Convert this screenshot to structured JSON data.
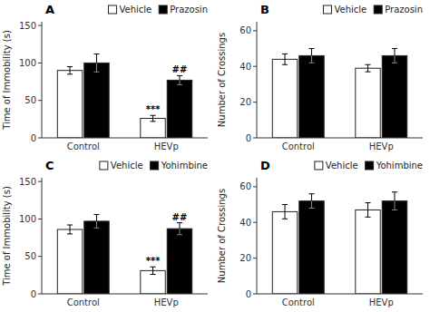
{
  "chart_data": [
    {
      "type": "bar",
      "title": "A",
      "ylabel": "Time of Immobility (s)",
      "categories": [
        "Control",
        "HEVp"
      ],
      "series": [
        {
          "name": "Vehicle",
          "color": "white",
          "values": [
            90,
            26
          ],
          "errors": [
            5,
            4
          ]
        },
        {
          "name": "Prazosin",
          "color": "black",
          "values": [
            100,
            77
          ],
          "errors": [
            12,
            6
          ]
        }
      ],
      "ylim": [
        0,
        155
      ],
      "yticks": [
        0,
        50,
        100,
        150
      ],
      "grid": false,
      "legend": "upper right",
      "annotations": [
        {
          "text": "***",
          "series": 0,
          "category": 1
        },
        {
          "text": "##",
          "series": 1,
          "category": 1
        }
      ]
    },
    {
      "type": "bar",
      "title": "B",
      "ylabel": "Number of Crossings",
      "categories": [
        "Control",
        "HEVp"
      ],
      "series": [
        {
          "name": "Vehicle",
          "color": "white",
          "values": [
            44,
            39
          ],
          "errors": [
            3,
            2
          ]
        },
        {
          "name": "Prazosin",
          "color": "black",
          "values": [
            46,
            46
          ],
          "errors": [
            4,
            4
          ]
        }
      ],
      "ylim": [
        0,
        65
      ],
      "yticks": [
        0,
        20,
        40,
        60
      ],
      "grid": false,
      "legend": "upper right",
      "annotations": []
    },
    {
      "type": "bar",
      "title": "C",
      "ylabel": "Time of Immobility (s)",
      "categories": [
        "Control",
        "HEVp"
      ],
      "series": [
        {
          "name": "Vehicle",
          "color": "white",
          "values": [
            86,
            31
          ],
          "errors": [
            6,
            5
          ]
        },
        {
          "name": "Yohimbine",
          "color": "black",
          "values": [
            97,
            87
          ],
          "errors": [
            9,
            8
          ]
        }
      ],
      "ylim": [
        0,
        155
      ],
      "yticks": [
        0,
        50,
        100,
        150
      ],
      "grid": false,
      "legend": "upper right",
      "annotations": [
        {
          "text": "***",
          "series": 0,
          "category": 1
        },
        {
          "text": "##",
          "series": 1,
          "category": 1
        }
      ]
    },
    {
      "type": "bar",
      "title": "D",
      "ylabel": "Number of Crossings",
      "categories": [
        "Control",
        "HEVp"
      ],
      "series": [
        {
          "name": "Vehicle",
          "color": "white",
          "values": [
            46,
            47
          ],
          "errors": [
            4,
            4
          ]
        },
        {
          "name": "Yohimbine",
          "color": "black",
          "values": [
            52,
            52
          ],
          "errors": [
            4,
            5
          ]
        }
      ],
      "ylim": [
        0,
        65
      ],
      "yticks": [
        0,
        20,
        40,
        60
      ],
      "grid": false,
      "legend": "upper right",
      "annotations": []
    }
  ]
}
